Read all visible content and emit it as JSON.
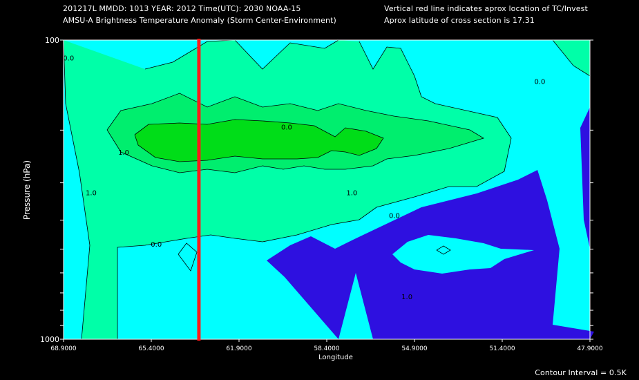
{
  "header": {
    "line1_left": "201217L  MMDD: 1013 YEAR: 2012 Time(UTC): 2030 NOAA-15",
    "line2_left": "AMSU-A Brightness Temperature Anomaly (Storm Center-Environment)",
    "line1_right": "Vertical red line indicates aprox location of TC/Invest",
    "line2_right": "Aprox latitude of cross section is 17.31"
  },
  "footer": {
    "contour_interval": "Contour Interval = 0.5K"
  },
  "colors": {
    "background": "#000000",
    "level_neg": "#2e10e0",
    "level_0": "#00ffff",
    "level_05": "#00ffa8",
    "level_10": "#00ee6e",
    "level_15": "#00dd18",
    "contour": "#000000",
    "tc_line": "#ff1a1a"
  },
  "chart_data": {
    "type": "heatmap",
    "xlabel": "Longitude",
    "ylabel": "Pressure (hPa)",
    "x_ticks": [
      "68.9000",
      "65.4000",
      "61.9000",
      "58.4000",
      "54.9000",
      "51.4000",
      "47.9000"
    ],
    "x_range": [
      68.9,
      47.9
    ],
    "y_ticks": [
      "100",
      "1000"
    ],
    "y_range": [
      100,
      1000
    ],
    "y_scale": "log",
    "contour_interval": 0.5,
    "contour_labels": [
      {
        "text": "0.0",
        "lon": 68.7,
        "hpa": 117
      },
      {
        "text": "0.0",
        "lon": 49.9,
        "hpa": 140
      },
      {
        "text": "0.0",
        "lon": 60.0,
        "hpa": 199
      },
      {
        "text": "1.0",
        "lon": 66.5,
        "hpa": 242
      },
      {
        "text": "1.0",
        "lon": 67.8,
        "hpa": 330
      },
      {
        "text": "1.0",
        "lon": 57.4,
        "hpa": 330
      },
      {
        "text": "0.0",
        "lon": 55.7,
        "hpa": 393
      },
      {
        "text": "0.0",
        "lon": 65.2,
        "hpa": 490
      },
      {
        "text": "1.0",
        "lon": 55.2,
        "hpa": 735
      }
    ],
    "tc_longitude": 63.5,
    "cross_section_latitude": 17.31
  }
}
